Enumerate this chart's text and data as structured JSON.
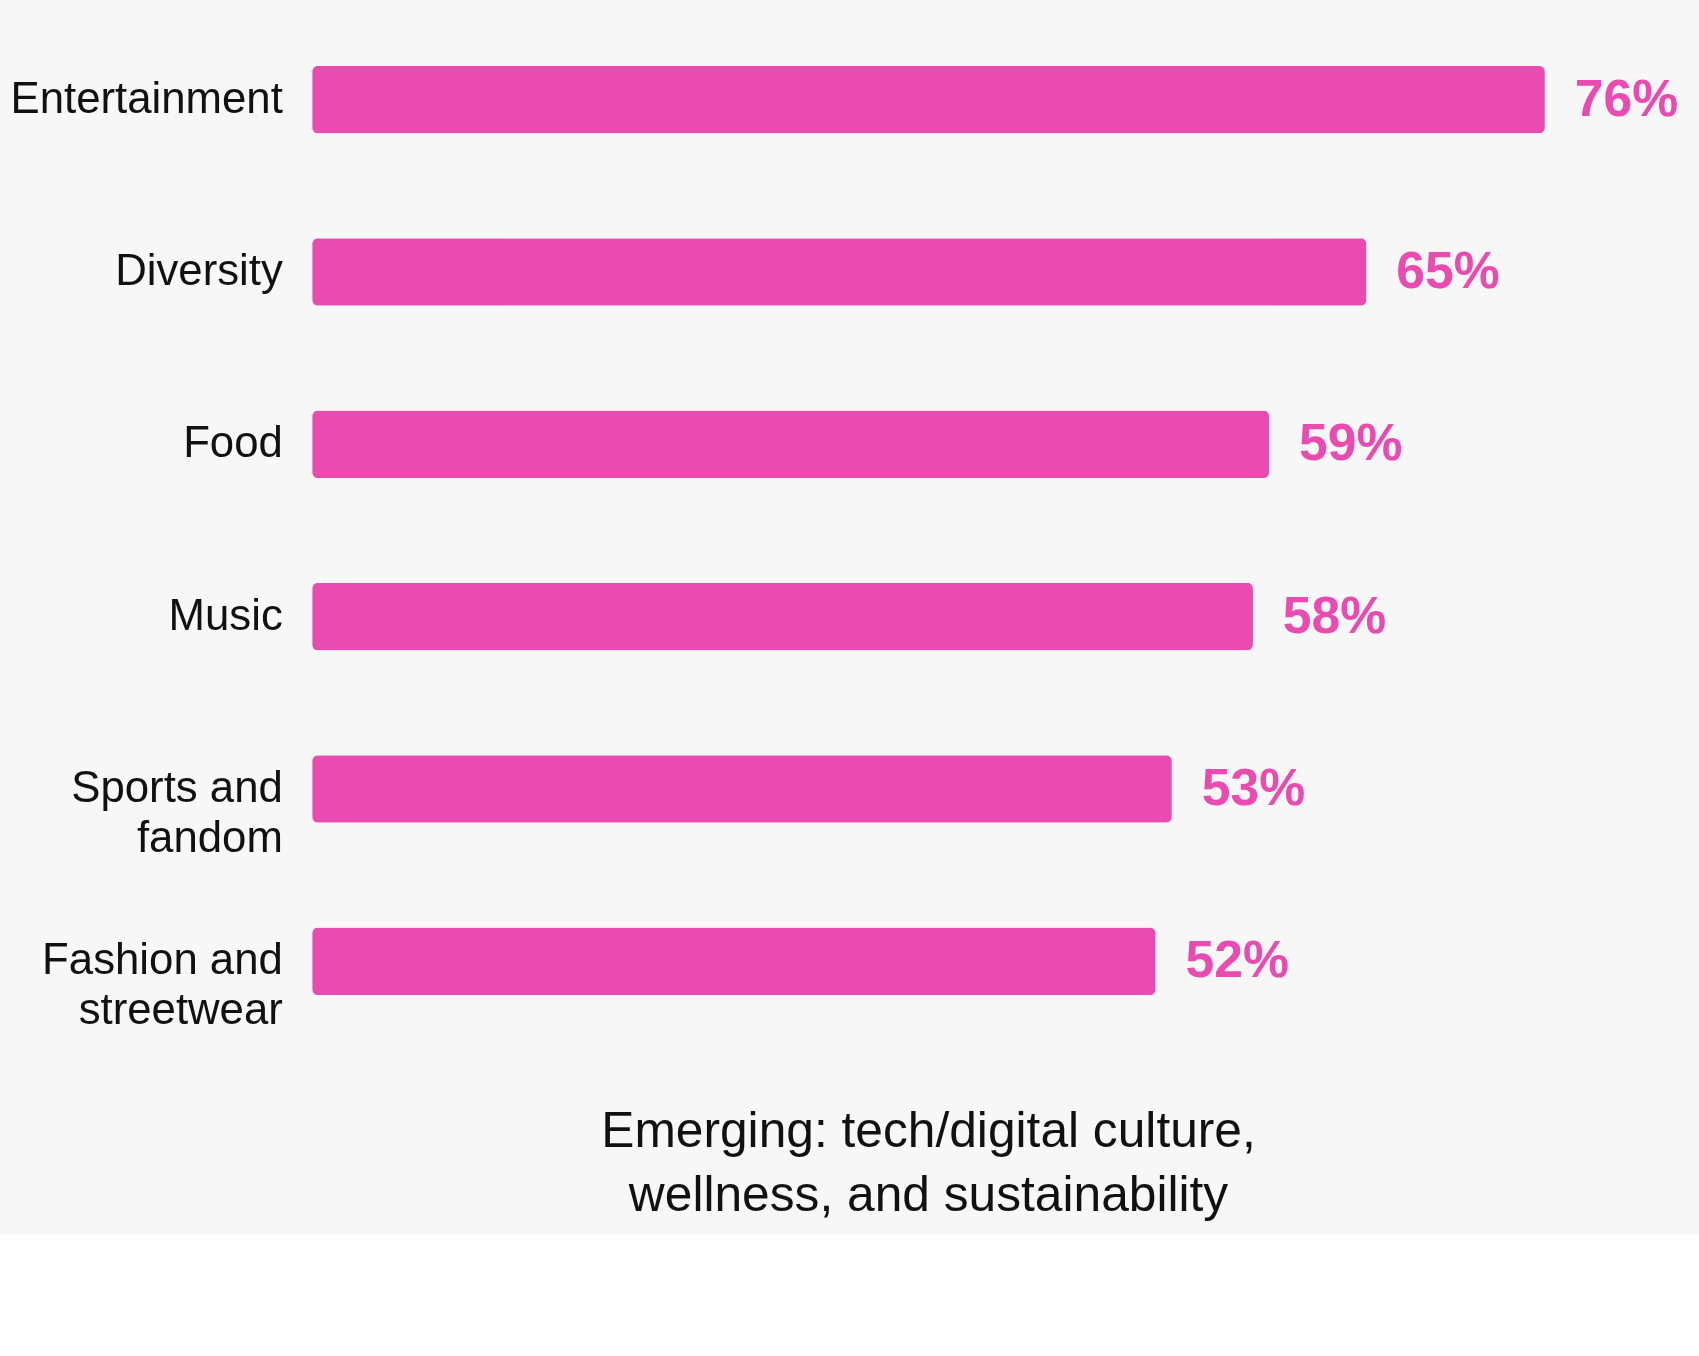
{
  "chart_data": {
    "type": "bar",
    "orientation": "horizontal",
    "categories": [
      "Entertainment",
      "Diversity",
      "Food",
      "Music",
      "Sports and fandom",
      "Fashion and streetwear"
    ],
    "values": [
      76,
      65,
      59,
      58,
      53,
      52
    ],
    "value_labels": [
      "76%",
      "65%",
      "59%",
      "58%",
      "53%",
      "52%"
    ],
    "color": "#e94bb1",
    "annotations": [
      "Emerging: tech/digital culture, wellness, and sustainability"
    ]
  }
}
